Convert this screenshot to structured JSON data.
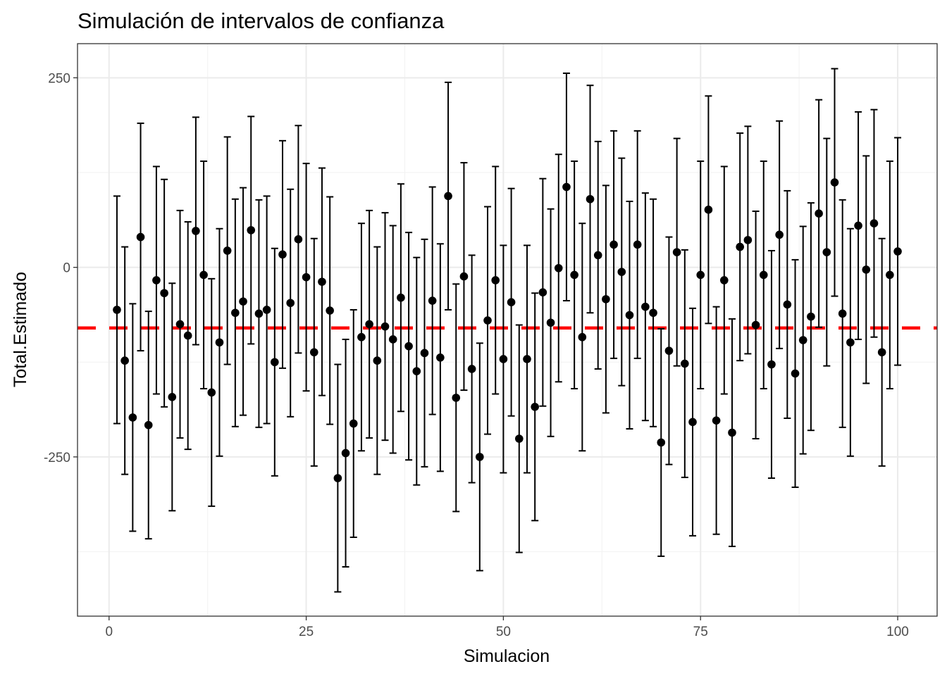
{
  "chart_data": {
    "type": "scatter",
    "title": "Simulación de intervalos de confianza",
    "xlabel": "Simulacion",
    "ylabel": "Total.Estimado",
    "xlim": [
      -4,
      105
    ],
    "ylim": [
      -460,
      295
    ],
    "x_ticks": [
      0,
      25,
      50,
      75,
      100
    ],
    "x_tick_labels": [
      "0",
      "25",
      "50",
      "75",
      "100"
    ],
    "y_ticks": [
      -250,
      0,
      250
    ],
    "y_tick_labels": [
      "-250",
      "0",
      "250"
    ],
    "grid": true,
    "reference_line": {
      "y": -80,
      "color": "#ff0000",
      "style": "dashed"
    },
    "point_color": "#000000",
    "series": [
      {
        "x": [
          1,
          2,
          3,
          4,
          5,
          6,
          7,
          8,
          9,
          10,
          11,
          12,
          13,
          14,
          15,
          16,
          17,
          18,
          19,
          20,
          21,
          22,
          23,
          24,
          25,
          26,
          27,
          28,
          29,
          30,
          31,
          32,
          33,
          34,
          35,
          36,
          37,
          38,
          39,
          40,
          41,
          42,
          43,
          44,
          45,
          46,
          47,
          48,
          49,
          50,
          51,
          52,
          53,
          54,
          55,
          56,
          57,
          58,
          59,
          60,
          61,
          62,
          63,
          64,
          65,
          66,
          67,
          68,
          69,
          70,
          71,
          72,
          73,
          74,
          75,
          76,
          77,
          78,
          79,
          80,
          81,
          82,
          83,
          84,
          85,
          86,
          87,
          88,
          89,
          90,
          91,
          92,
          93,
          94,
          95,
          96,
          97,
          98,
          99,
          100
        ],
        "y": [
          -56,
          -123,
          -198,
          40,
          -208,
          -17,
          -34,
          -171,
          -75,
          -90,
          48,
          -10,
          -165,
          -99,
          22,
          -60,
          -45,
          49,
          -61,
          -56,
          -125,
          17,
          -47,
          37,
          -13,
          -112,
          -19,
          -57,
          -278,
          -245,
          -206,
          -92,
          -75,
          -123,
          -78,
          -95,
          -40,
          -104,
          -137,
          -113,
          -44,
          -119,
          94,
          -172,
          -12,
          -134,
          -250,
          -70,
          -17,
          -121,
          -46,
          -226,
          -121,
          -184,
          -33,
          -73,
          -1,
          106,
          -10,
          -92,
          90,
          16,
          -42,
          30,
          -6,
          -63,
          30,
          -52,
          -60,
          -231,
          -110,
          20,
          -127,
          -204,
          -10,
          76,
          -202,
          -17,
          -218,
          27,
          36,
          -76,
          -10,
          -128,
          43,
          -49,
          -140,
          -96,
          -65,
          71,
          20,
          112,
          -61,
          -99,
          55,
          -3,
          58,
          -112,
          -10,
          21
        ],
        "lower": [
          -206,
          -273,
          -348,
          -110,
          -358,
          -167,
          -184,
          -321,
          -225,
          -240,
          -102,
          -160,
          -315,
          -249,
          -128,
          -210,
          -195,
          -101,
          -211,
          -206,
          -275,
          -133,
          -197,
          -113,
          -163,
          -262,
          -169,
          -207,
          -428,
          -395,
          -356,
          -242,
          -225,
          -273,
          -228,
          -245,
          -190,
          -254,
          -287,
          -263,
          -194,
          -269,
          -56,
          -322,
          -162,
          -284,
          -400,
          -220,
          -167,
          -271,
          -196,
          -376,
          -271,
          -334,
          -183,
          -223,
          -151,
          -44,
          -160,
          -242,
          -60,
          -134,
          -192,
          -120,
          -156,
          -213,
          -120,
          -202,
          -210,
          -381,
          -260,
          -130,
          -277,
          -354,
          -160,
          -74,
          -352,
          -167,
          -368,
          -123,
          -114,
          -226,
          -160,
          -278,
          -107,
          -199,
          -290,
          -246,
          -215,
          -79,
          -130,
          -38,
          -211,
          -249,
          -95,
          -153,
          -92,
          -262,
          -160,
          -129
        ],
        "upper": [
          94,
          27,
          -48,
          190,
          -58,
          133,
          116,
          -21,
          75,
          60,
          198,
          140,
          -15,
          51,
          172,
          90,
          105,
          199,
          89,
          94,
          25,
          167,
          103,
          187,
          137,
          38,
          131,
          93,
          -128,
          -95,
          -56,
          58,
          75,
          27,
          72,
          55,
          110,
          46,
          13,
          37,
          106,
          31,
          244,
          -22,
          138,
          16,
          -100,
          80,
          133,
          29,
          104,
          -76,
          29,
          -34,
          117,
          77,
          149,
          256,
          140,
          58,
          240,
          166,
          108,
          180,
          144,
          87,
          180,
          98,
          90,
          -81,
          40,
          170,
          23,
          -54,
          140,
          226,
          -52,
          133,
          -68,
          177,
          186,
          74,
          140,
          22,
          193,
          101,
          10,
          54,
          85,
          221,
          170,
          262,
          89,
          51,
          205,
          147,
          208,
          38,
          140,
          171
        ]
      }
    ]
  }
}
